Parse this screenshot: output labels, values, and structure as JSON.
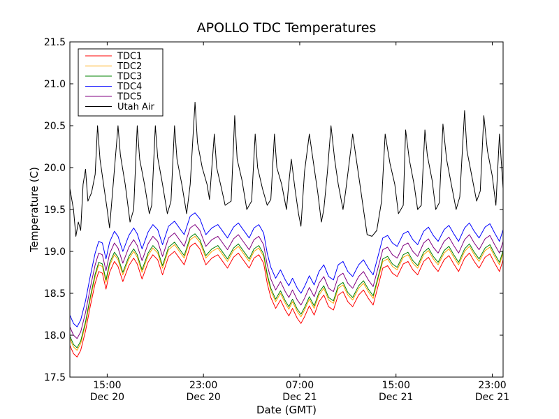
{
  "chart_data": {
    "type": "line",
    "title": "APOLLO TDC Temperatures",
    "xlabel": "Date (GMT)",
    "ylabel": "Temperature (C)",
    "ylim": [
      17.5,
      21.5
    ],
    "xlim_hours": [
      11.9,
      47.9
    ],
    "legend_position": "top-left",
    "yticks": [
      {
        "value": 17.5,
        "label": "17.5"
      },
      {
        "value": 18.0,
        "label": "18.0"
      },
      {
        "value": 18.5,
        "label": "18.5"
      },
      {
        "value": 19.0,
        "label": "19.0"
      },
      {
        "value": 19.5,
        "label": "19.5"
      },
      {
        "value": 20.0,
        "label": "20.0"
      },
      {
        "value": 20.5,
        "label": "20.5"
      },
      {
        "value": 21.0,
        "label": "21.0"
      },
      {
        "value": 21.5,
        "label": "21.5"
      }
    ],
    "xticks": [
      {
        "hour": 15,
        "time": "15:00",
        "date": "Dec 20"
      },
      {
        "hour": 23,
        "time": "23:00",
        "date": "Dec 20"
      },
      {
        "hour": 31,
        "time": "07:00",
        "date": "Dec 21"
      },
      {
        "hour": 39,
        "time": "15:00",
        "date": "Dec 21"
      },
      {
        "hour": 47,
        "time": "23:00",
        "date": "Dec 21"
      }
    ],
    "series": [
      {
        "name": "TDC1",
        "color": "#ff0000",
        "points": [
          [
            11.9,
            17.88
          ],
          [
            12.2,
            17.78
          ],
          [
            12.5,
            17.74
          ],
          [
            12.8,
            17.82
          ],
          [
            13.2,
            18.05
          ],
          [
            13.6,
            18.35
          ],
          [
            14.0,
            18.62
          ],
          [
            14.3,
            18.76
          ],
          [
            14.6,
            18.74
          ],
          [
            14.9,
            18.55
          ],
          [
            15.2,
            18.75
          ],
          [
            15.6,
            18.88
          ],
          [
            15.9,
            18.82
          ],
          [
            16.3,
            18.64
          ],
          [
            16.8,
            18.83
          ],
          [
            17.2,
            18.92
          ],
          [
            17.5,
            18.85
          ],
          [
            17.9,
            18.67
          ],
          [
            18.4,
            18.87
          ],
          [
            18.8,
            18.96
          ],
          [
            19.2,
            18.9
          ],
          [
            19.6,
            18.72
          ],
          [
            20.1,
            18.94
          ],
          [
            20.6,
            19.0
          ],
          [
            21.0,
            18.92
          ],
          [
            21.4,
            18.84
          ],
          [
            21.9,
            19.06
          ],
          [
            22.3,
            19.1
          ],
          [
            22.7,
            19.03
          ],
          [
            23.2,
            18.84
          ],
          [
            23.7,
            18.92
          ],
          [
            24.2,
            18.96
          ],
          [
            24.6,
            18.88
          ],
          [
            25.0,
            18.8
          ],
          [
            25.5,
            18.93
          ],
          [
            25.9,
            18.98
          ],
          [
            26.4,
            18.88
          ],
          [
            26.8,
            18.8
          ],
          [
            27.2,
            18.92
          ],
          [
            27.6,
            18.96
          ],
          [
            28.0,
            18.86
          ],
          [
            28.3,
            18.62
          ],
          [
            28.6,
            18.45
          ],
          [
            29.0,
            18.32
          ],
          [
            29.4,
            18.42
          ],
          [
            29.8,
            18.3
          ],
          [
            30.1,
            18.23
          ],
          [
            30.4,
            18.32
          ],
          [
            30.8,
            18.2
          ],
          [
            31.1,
            18.14
          ],
          [
            31.4,
            18.22
          ],
          [
            31.8,
            18.35
          ],
          [
            32.2,
            18.24
          ],
          [
            32.6,
            18.4
          ],
          [
            33.0,
            18.48
          ],
          [
            33.4,
            18.34
          ],
          [
            33.8,
            18.3
          ],
          [
            34.2,
            18.48
          ],
          [
            34.6,
            18.52
          ],
          [
            35.0,
            18.4
          ],
          [
            35.4,
            18.34
          ],
          [
            35.9,
            18.48
          ],
          [
            36.3,
            18.54
          ],
          [
            36.7,
            18.44
          ],
          [
            37.1,
            18.36
          ],
          [
            37.5,
            18.58
          ],
          [
            37.9,
            18.8
          ],
          [
            38.3,
            18.83
          ],
          [
            38.7,
            18.74
          ],
          [
            39.1,
            18.7
          ],
          [
            39.6,
            18.85
          ],
          [
            40.0,
            18.88
          ],
          [
            40.4,
            18.78
          ],
          [
            40.8,
            18.72
          ],
          [
            41.3,
            18.88
          ],
          [
            41.7,
            18.93
          ],
          [
            42.1,
            18.83
          ],
          [
            42.5,
            18.76
          ],
          [
            43.0,
            18.9
          ],
          [
            43.4,
            18.95
          ],
          [
            43.8,
            18.85
          ],
          [
            44.2,
            18.76
          ],
          [
            44.7,
            18.92
          ],
          [
            45.1,
            18.98
          ],
          [
            45.5,
            18.88
          ],
          [
            45.9,
            18.8
          ],
          [
            46.4,
            18.93
          ],
          [
            46.8,
            18.97
          ],
          [
            47.2,
            18.86
          ],
          [
            47.6,
            18.76
          ],
          [
            47.9,
            18.9
          ]
        ]
      },
      {
        "name": "TDC2",
        "color": "#ffa500",
        "offset_from": "TDC1",
        "offset": 0.08
      },
      {
        "name": "TDC3",
        "color": "#008000",
        "offset_from": "TDC1",
        "offset": 0.11
      },
      {
        "name": "TDC4",
        "color": "#0000ff",
        "offset_from": "TDC1",
        "offset": 0.36
      },
      {
        "name": "TDC5",
        "color": "#800080",
        "offset_from": "TDC1",
        "offset": 0.22
      },
      {
        "name": "Utah Air",
        "color": "#000000",
        "points": [
          [
            11.9,
            19.75
          ],
          [
            12.2,
            19.5
          ],
          [
            12.4,
            19.18
          ],
          [
            12.6,
            19.35
          ],
          [
            12.8,
            19.25
          ],
          [
            13.0,
            19.8
          ],
          [
            13.2,
            19.98
          ],
          [
            13.4,
            19.6
          ],
          [
            13.7,
            19.7
          ],
          [
            14.0,
            19.92
          ],
          [
            14.2,
            20.5
          ],
          [
            14.4,
            20.1
          ],
          [
            14.7,
            19.8
          ],
          [
            15.0,
            19.5
          ],
          [
            15.2,
            19.28
          ],
          [
            15.5,
            19.8
          ],
          [
            15.9,
            20.5
          ],
          [
            16.1,
            20.15
          ],
          [
            16.5,
            19.8
          ],
          [
            16.9,
            19.35
          ],
          [
            17.2,
            19.5
          ],
          [
            17.5,
            20.5
          ],
          [
            17.7,
            20.1
          ],
          [
            18.1,
            19.8
          ],
          [
            18.5,
            19.45
          ],
          [
            18.7,
            19.55
          ],
          [
            19.0,
            20.5
          ],
          [
            19.2,
            20.12
          ],
          [
            19.6,
            19.8
          ],
          [
            20.0,
            19.45
          ],
          [
            20.3,
            19.6
          ],
          [
            20.6,
            20.5
          ],
          [
            20.8,
            20.1
          ],
          [
            21.2,
            19.8
          ],
          [
            21.6,
            19.45
          ],
          [
            21.9,
            19.8
          ],
          [
            22.3,
            20.78
          ],
          [
            22.5,
            20.3
          ],
          [
            22.9,
            20.0
          ],
          [
            23.3,
            19.8
          ],
          [
            23.5,
            19.62
          ],
          [
            23.9,
            20.4
          ],
          [
            24.1,
            20.0
          ],
          [
            24.5,
            19.75
          ],
          [
            24.8,
            19.55
          ],
          [
            25.3,
            19.6
          ],
          [
            25.6,
            20.62
          ],
          [
            25.8,
            20.1
          ],
          [
            26.2,
            19.85
          ],
          [
            26.6,
            19.5
          ],
          [
            27.0,
            19.6
          ],
          [
            27.3,
            20.4
          ],
          [
            27.5,
            20.0
          ],
          [
            27.9,
            19.75
          ],
          [
            28.3,
            19.55
          ],
          [
            28.6,
            19.62
          ],
          [
            28.9,
            20.4
          ],
          [
            29.1,
            20.0
          ],
          [
            29.5,
            19.8
          ],
          [
            29.9,
            19.5
          ],
          [
            30.1,
            19.82
          ],
          [
            30.3,
            20.1
          ],
          [
            30.6,
            19.75
          ],
          [
            30.9,
            19.45
          ],
          [
            31.1,
            19.3
          ],
          [
            31.4,
            19.95
          ],
          [
            31.8,
            20.4
          ],
          [
            32.2,
            20.0
          ],
          [
            32.5,
            19.7
          ],
          [
            32.8,
            19.35
          ],
          [
            33.0,
            19.5
          ],
          [
            33.3,
            19.95
          ],
          [
            33.6,
            20.5
          ],
          [
            33.9,
            20.1
          ],
          [
            34.2,
            19.8
          ],
          [
            34.6,
            19.5
          ],
          [
            34.8,
            19.7
          ],
          [
            35.1,
            20.05
          ],
          [
            35.4,
            20.4
          ],
          [
            35.7,
            20.1
          ],
          [
            36.0,
            19.8
          ],
          [
            36.3,
            19.5
          ],
          [
            36.6,
            19.2
          ],
          [
            37.0,
            19.18
          ],
          [
            37.4,
            19.25
          ],
          [
            37.8,
            19.6
          ],
          [
            38.1,
            20.4
          ],
          [
            38.5,
            20.05
          ],
          [
            38.9,
            19.8
          ],
          [
            39.2,
            19.45
          ],
          [
            39.6,
            19.55
          ],
          [
            39.8,
            20.45
          ],
          [
            40.1,
            20.1
          ],
          [
            40.5,
            19.8
          ],
          [
            40.8,
            19.5
          ],
          [
            41.1,
            19.55
          ],
          [
            41.4,
            20.45
          ],
          [
            41.6,
            20.15
          ],
          [
            42.0,
            19.85
          ],
          [
            42.3,
            19.5
          ],
          [
            42.6,
            19.58
          ],
          [
            42.9,
            20.52
          ],
          [
            43.2,
            20.1
          ],
          [
            43.6,
            19.8
          ],
          [
            44.0,
            19.5
          ],
          [
            44.3,
            19.65
          ],
          [
            44.7,
            20.68
          ],
          [
            44.9,
            20.2
          ],
          [
            45.3,
            19.9
          ],
          [
            45.7,
            19.6
          ],
          [
            46.0,
            19.72
          ],
          [
            46.3,
            20.62
          ],
          [
            46.6,
            20.2
          ],
          [
            47.0,
            19.9
          ],
          [
            47.3,
            19.55
          ],
          [
            47.6,
            20.4
          ],
          [
            47.9,
            19.75
          ]
        ]
      }
    ]
  }
}
